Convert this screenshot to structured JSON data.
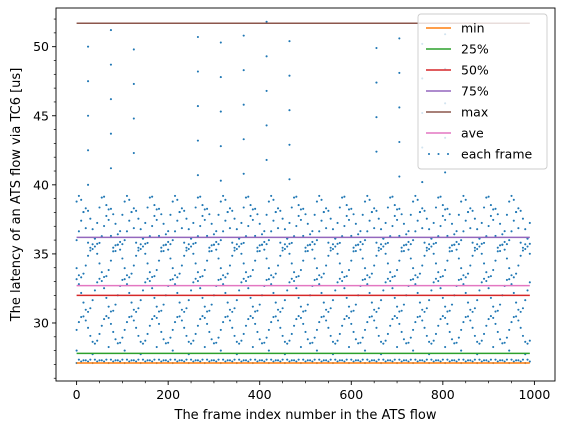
{
  "chart_data": {
    "type": "line",
    "xlabel": "The frame index number in the ATS flow",
    "ylabel": "The latency of an ATS flow via TC6 [us]",
    "xlim": [
      -45,
      1045
    ],
    "ylim": [
      25.8,
      52.8
    ],
    "xticks": [
      0,
      200,
      400,
      600,
      800,
      1000
    ],
    "yticks": [
      30,
      35,
      40,
      45,
      50
    ],
    "grid": false,
    "legend_position": "top-right",
    "series": [
      {
        "name": "min",
        "kind": "hline",
        "y": 27.1,
        "x_range": [
          0,
          990
        ],
        "color": "#ff7f0e"
      },
      {
        "name": "25%",
        "kind": "hline",
        "y": 27.8,
        "x_range": [
          0,
          990
        ],
        "color": "#2ca02c"
      },
      {
        "name": "50%",
        "kind": "hline",
        "y": 32.0,
        "x_range": [
          0,
          990
        ],
        "color": "#d62728"
      },
      {
        "name": "75%",
        "kind": "hline",
        "y": 36.2,
        "x_range": [
          0,
          990
        ],
        "color": "#9467bd"
      },
      {
        "name": "max",
        "kind": "hline",
        "y": 51.7,
        "x_range": [
          0,
          990
        ],
        "color": "#8c564b"
      },
      {
        "name": "ave",
        "kind": "hline",
        "y": 32.7,
        "x_range": [
          0,
          990
        ],
        "color": "#e377c2"
      },
      {
        "name": "each frame",
        "kind": "scatter",
        "color": "#1f77b4",
        "x_range": [
          0,
          990
        ],
        "cycle_period": 52.5,
        "cycle_phase_step": 0.45,
        "bands": [
          {
            "base": 29.5,
            "amplitude": 1.0
          },
          {
            "base": 32.0,
            "amplitude": 1.2
          },
          {
            "base": 34.5,
            "amplitude": 1.2
          },
          {
            "base": 37.0,
            "amplitude": 1.3
          },
          {
            "base": 37.2,
            "amplitude": 2.0
          }
        ],
        "floor": 27.1,
        "spike_x": [
          25,
          75,
          125,
          265,
          315,
          365,
          415,
          465,
          655,
          705,
          755,
          805
        ],
        "spike_tops": [
          50.0,
          51.2,
          49.8,
          50.7,
          50.3,
          50.8,
          51.8,
          50.4,
          49.9,
          50.6,
          50.2,
          50.9
        ],
        "spike_step": 2.5,
        "spike_bottom": 40.0
      }
    ]
  }
}
